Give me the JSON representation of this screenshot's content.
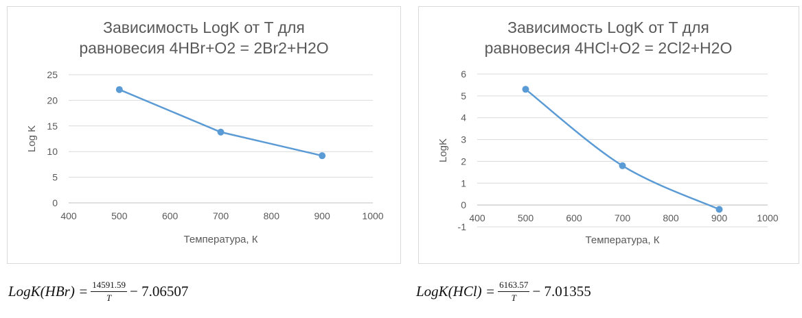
{
  "chart_data": [
    {
      "type": "line",
      "title_lines": [
        "Зависимость LogK от T для",
        "равновесия 4HBr+O2 = 2Br2+H2O"
      ],
      "xlabel": "Температура, К",
      "ylabel": "Log K",
      "xlim": [
        400,
        1000
      ],
      "ylim": [
        0,
        25
      ],
      "x_ticks": [
        "400",
        "500",
        "600",
        "700",
        "800",
        "900",
        "1000"
      ],
      "y_ticks": [
        "0",
        "5",
        "10",
        "15",
        "20",
        "25"
      ],
      "grid": true,
      "smooth": false,
      "series": [
        {
          "x": [
            500,
            700,
            900
          ],
          "values": [
            22.1,
            13.8,
            9.2
          ],
          "color": "#5b9bd5"
        }
      ]
    },
    {
      "type": "line",
      "title_lines": [
        "Зависимость LogK от T для",
        "равновесия 4HCl+O2 = 2Cl2+H2O"
      ],
      "xlabel": "Температура, К",
      "ylabel": "LogK",
      "xlim": [
        400,
        1000
      ],
      "ylim": [
        -1,
        6
      ],
      "x_ticks": [
        "400",
        "500",
        "600",
        "700",
        "800",
        "900",
        "1000"
      ],
      "y_ticks": [
        "-1",
        "0",
        "1",
        "2",
        "3",
        "4",
        "5",
        "6"
      ],
      "grid": true,
      "smooth": true,
      "series": [
        {
          "x": [
            500,
            700,
            900
          ],
          "values": [
            5.3,
            1.8,
            -0.2
          ],
          "color": "#5b9bd5"
        }
      ]
    }
  ],
  "formulas": [
    {
      "lhs": "LogK(HBr) =",
      "numerator": "14591.59",
      "denominator": "T",
      "rhs": "− 7.06507"
    },
    {
      "lhs": "LogK(HCl) =",
      "numerator": "6163.57",
      "denominator": "T",
      "rhs": "− 7.01355"
    }
  ]
}
